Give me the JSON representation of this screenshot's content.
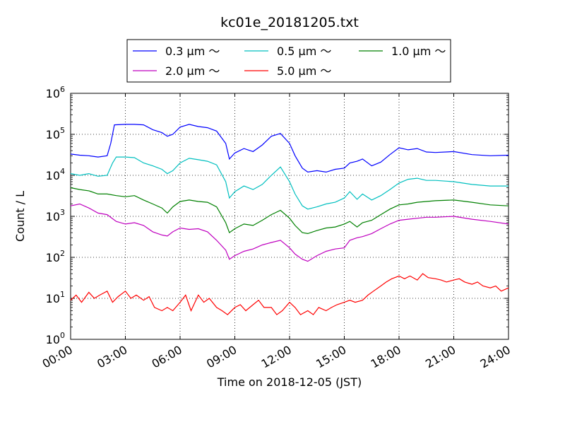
{
  "chart_data": {
    "type": "line",
    "title": "kc01e_20181205.txt",
    "xlabel": "Time on 2018-12-05 (JST)",
    "ylabel": "Count / L",
    "yscale": "log",
    "ylim": [
      1,
      1000000
    ],
    "xlim": [
      0,
      24
    ],
    "grid": true,
    "legend_position": "top-center",
    "x_tick_labels": [
      "00:00",
      "03:00",
      "06:00",
      "09:00",
      "12:00",
      "15:00",
      "18:00",
      "21:00",
      "24:00"
    ],
    "y_tick_labels": [
      {
        "base": "10",
        "exp": "0"
      },
      {
        "base": "10",
        "exp": "1"
      },
      {
        "base": "10",
        "exp": "2"
      },
      {
        "base": "10",
        "exp": "3"
      },
      {
        "base": "10",
        "exp": "4"
      },
      {
        "base": "10",
        "exp": "5"
      },
      {
        "base": "10",
        "exp": "6"
      }
    ],
    "series": [
      {
        "name": "0.3 μm ～",
        "color": "#0000ff",
        "points": [
          [
            0,
            33000
          ],
          [
            0.5,
            31000
          ],
          [
            1,
            30000
          ],
          [
            1.5,
            28000
          ],
          [
            2,
            30000
          ],
          [
            2.2,
            60000
          ],
          [
            2.4,
            170000
          ],
          [
            3,
            175000
          ],
          [
            3.5,
            175000
          ],
          [
            4,
            170000
          ],
          [
            4.5,
            130000
          ],
          [
            5,
            110000
          ],
          [
            5.3,
            90000
          ],
          [
            5.6,
            100000
          ],
          [
            6,
            150000
          ],
          [
            6.5,
            175000
          ],
          [
            7,
            155000
          ],
          [
            7.5,
            145000
          ],
          [
            8,
            120000
          ],
          [
            8.5,
            60000
          ],
          [
            8.7,
            25000
          ],
          [
            9,
            35000
          ],
          [
            9.5,
            45000
          ],
          [
            10,
            38000
          ],
          [
            10.5,
            55000
          ],
          [
            11,
            90000
          ],
          [
            11.5,
            105000
          ],
          [
            12,
            60000
          ],
          [
            12.3,
            30000
          ],
          [
            12.7,
            15000
          ],
          [
            13,
            12000
          ],
          [
            13.5,
            13000
          ],
          [
            14,
            12000
          ],
          [
            14.5,
            14000
          ],
          [
            15,
            15000
          ],
          [
            15.3,
            20000
          ],
          [
            15.7,
            22000
          ],
          [
            16,
            25000
          ],
          [
            16.5,
            17000
          ],
          [
            17,
            21000
          ],
          [
            17.5,
            32000
          ],
          [
            18,
            47000
          ],
          [
            18.5,
            42000
          ],
          [
            19,
            45000
          ],
          [
            19.5,
            37000
          ],
          [
            20,
            36000
          ],
          [
            21,
            38000
          ],
          [
            22,
            32000
          ],
          [
            23,
            30000
          ],
          [
            24,
            31000
          ]
        ]
      },
      {
        "name": "0.5 μm ～",
        "color": "#00bfbf",
        "points": [
          [
            0,
            11000
          ],
          [
            0.5,
            10000
          ],
          [
            1,
            11000
          ],
          [
            1.5,
            9500
          ],
          [
            2,
            10000
          ],
          [
            2.3,
            20000
          ],
          [
            2.5,
            28000
          ],
          [
            3,
            28000
          ],
          [
            3.5,
            27000
          ],
          [
            4,
            20000
          ],
          [
            4.5,
            17000
          ],
          [
            5,
            14000
          ],
          [
            5.3,
            11000
          ],
          [
            5.6,
            13000
          ],
          [
            6,
            20000
          ],
          [
            6.5,
            26000
          ],
          [
            7,
            24000
          ],
          [
            7.5,
            22000
          ],
          [
            8,
            18000
          ],
          [
            8.5,
            7000
          ],
          [
            8.7,
            2800
          ],
          [
            9,
            4000
          ],
          [
            9.5,
            5500
          ],
          [
            10,
            4500
          ],
          [
            10.5,
            6000
          ],
          [
            11,
            10000
          ],
          [
            11.5,
            16000
          ],
          [
            12,
            7000
          ],
          [
            12.3,
            3500
          ],
          [
            12.7,
            1800
          ],
          [
            13,
            1500
          ],
          [
            13.5,
            1700
          ],
          [
            14,
            2000
          ],
          [
            14.5,
            2200
          ],
          [
            15,
            2800
          ],
          [
            15.3,
            4000
          ],
          [
            15.7,
            2600
          ],
          [
            16,
            3500
          ],
          [
            16.5,
            2500
          ],
          [
            17,
            3200
          ],
          [
            17.5,
            4500
          ],
          [
            18,
            6500
          ],
          [
            18.5,
            8000
          ],
          [
            19,
            8500
          ],
          [
            19.5,
            7500
          ],
          [
            20,
            7500
          ],
          [
            21,
            7000
          ],
          [
            22,
            6000
          ],
          [
            23,
            5500
          ],
          [
            24,
            5500
          ]
        ]
      },
      {
        "name": "1.0 μm ～",
        "color": "#008000",
        "points": [
          [
            0,
            5000
          ],
          [
            0.5,
            4500
          ],
          [
            1,
            4200
          ],
          [
            1.5,
            3500
          ],
          [
            2,
            3500
          ],
          [
            2.5,
            3200
          ],
          [
            3,
            3000
          ],
          [
            3.5,
            3200
          ],
          [
            4,
            2500
          ],
          [
            4.5,
            2000
          ],
          [
            5,
            1600
          ],
          [
            5.3,
            1200
          ],
          [
            5.6,
            1700
          ],
          [
            6,
            2300
          ],
          [
            6.5,
            2500
          ],
          [
            7,
            2300
          ],
          [
            7.5,
            2200
          ],
          [
            8,
            1700
          ],
          [
            8.5,
            700
          ],
          [
            8.7,
            400
          ],
          [
            9,
            500
          ],
          [
            9.5,
            650
          ],
          [
            10,
            600
          ],
          [
            10.5,
            800
          ],
          [
            11,
            1100
          ],
          [
            11.5,
            1400
          ],
          [
            12,
            900
          ],
          [
            12.3,
            600
          ],
          [
            12.7,
            400
          ],
          [
            13,
            380
          ],
          [
            13.5,
            450
          ],
          [
            14,
            520
          ],
          [
            14.5,
            550
          ],
          [
            15,
            650
          ],
          [
            15.3,
            750
          ],
          [
            15.7,
            550
          ],
          [
            16,
            700
          ],
          [
            16.5,
            800
          ],
          [
            17,
            1100
          ],
          [
            17.5,
            1500
          ],
          [
            18,
            1900
          ],
          [
            18.5,
            2000
          ],
          [
            19,
            2200
          ],
          [
            19.5,
            2300
          ],
          [
            20,
            2400
          ],
          [
            21,
            2500
          ],
          [
            22,
            2200
          ],
          [
            23,
            1900
          ],
          [
            24,
            1800
          ]
        ]
      },
      {
        "name": "2.0 μm ～",
        "color": "#bf00bf",
        "points": [
          [
            0,
            1800
          ],
          [
            0.5,
            2000
          ],
          [
            1,
            1600
          ],
          [
            1.5,
            1200
          ],
          [
            2,
            1100
          ],
          [
            2.5,
            750
          ],
          [
            3,
            650
          ],
          [
            3.5,
            700
          ],
          [
            4,
            600
          ],
          [
            4.5,
            420
          ],
          [
            5,
            350
          ],
          [
            5.3,
            330
          ],
          [
            5.6,
            420
          ],
          [
            6,
            520
          ],
          [
            6.5,
            480
          ],
          [
            7,
            500
          ],
          [
            7.5,
            420
          ],
          [
            8,
            260
          ],
          [
            8.5,
            150
          ],
          [
            8.7,
            90
          ],
          [
            9,
            110
          ],
          [
            9.5,
            140
          ],
          [
            10,
            160
          ],
          [
            10.5,
            200
          ],
          [
            11,
            230
          ],
          [
            11.5,
            260
          ],
          [
            12,
            170
          ],
          [
            12.3,
            120
          ],
          [
            12.7,
            90
          ],
          [
            13,
            80
          ],
          [
            13.5,
            110
          ],
          [
            14,
            140
          ],
          [
            14.5,
            160
          ],
          [
            15,
            170
          ],
          [
            15.3,
            260
          ],
          [
            15.7,
            300
          ],
          [
            16,
            320
          ],
          [
            16.5,
            380
          ],
          [
            17,
            500
          ],
          [
            17.5,
            650
          ],
          [
            18,
            800
          ],
          [
            18.5,
            850
          ],
          [
            19,
            900
          ],
          [
            19.5,
            950
          ],
          [
            20,
            950
          ],
          [
            21,
            1000
          ],
          [
            22,
            850
          ],
          [
            23,
            750
          ],
          [
            24,
            650
          ]
        ]
      },
      {
        "name": "5.0 μm ～",
        "color": "#ff0000",
        "points": [
          [
            0,
            9
          ],
          [
            0.3,
            12
          ],
          [
            0.6,
            8
          ],
          [
            1,
            14
          ],
          [
            1.3,
            10
          ],
          [
            1.6,
            12
          ],
          [
            2,
            15
          ],
          [
            2.3,
            8
          ],
          [
            2.6,
            11
          ],
          [
            3,
            15
          ],
          [
            3.3,
            10
          ],
          [
            3.6,
            12
          ],
          [
            4,
            9
          ],
          [
            4.3,
            11
          ],
          [
            4.6,
            6
          ],
          [
            5,
            5
          ],
          [
            5.3,
            6
          ],
          [
            5.6,
            5
          ],
          [
            6,
            8
          ],
          [
            6.3,
            12
          ],
          [
            6.6,
            5
          ],
          [
            7,
            12
          ],
          [
            7.3,
            8
          ],
          [
            7.6,
            10
          ],
          [
            8,
            6
          ],
          [
            8.3,
            5
          ],
          [
            8.6,
            4
          ],
          [
            9,
            6
          ],
          [
            9.3,
            7
          ],
          [
            9.6,
            5
          ],
          [
            10,
            7
          ],
          [
            10.3,
            9
          ],
          [
            10.6,
            6
          ],
          [
            11,
            6
          ],
          [
            11.3,
            4
          ],
          [
            11.6,
            5
          ],
          [
            12,
            8
          ],
          [
            12.3,
            6
          ],
          [
            12.6,
            4
          ],
          [
            13,
            5
          ],
          [
            13.3,
            4
          ],
          [
            13.6,
            6
          ],
          [
            14,
            5
          ],
          [
            14.3,
            6
          ],
          [
            14.6,
            7
          ],
          [
            15,
            8
          ],
          [
            15.3,
            9
          ],
          [
            15.6,
            8
          ],
          [
            16,
            9
          ],
          [
            16.3,
            12
          ],
          [
            16.6,
            15
          ],
          [
            17,
            20
          ],
          [
            17.3,
            25
          ],
          [
            17.6,
            30
          ],
          [
            18,
            35
          ],
          [
            18.3,
            30
          ],
          [
            18.6,
            35
          ],
          [
            19,
            28
          ],
          [
            19.3,
            40
          ],
          [
            19.6,
            32
          ],
          [
            20,
            30
          ],
          [
            20.3,
            28
          ],
          [
            20.6,
            25
          ],
          [
            21,
            28
          ],
          [
            21.3,
            30
          ],
          [
            21.6,
            25
          ],
          [
            22,
            22
          ],
          [
            22.3,
            25
          ],
          [
            22.6,
            20
          ],
          [
            23,
            18
          ],
          [
            23.3,
            20
          ],
          [
            23.6,
            15
          ],
          [
            24,
            18
          ]
        ]
      }
    ]
  }
}
